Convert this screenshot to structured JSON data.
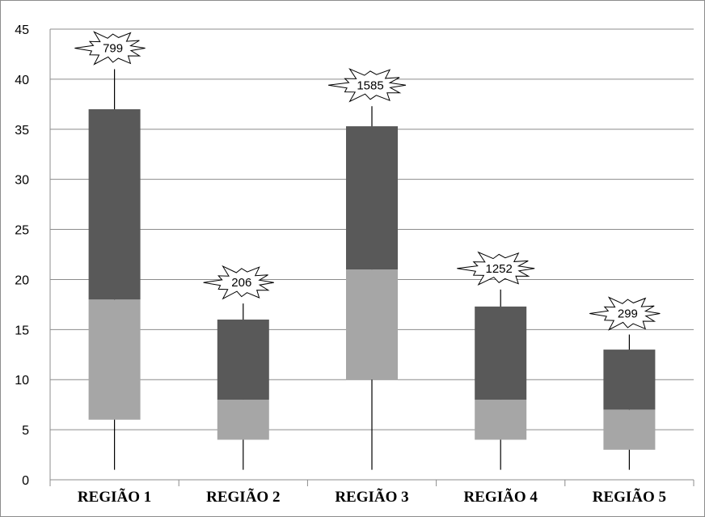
{
  "chart_data": {
    "type": "boxplot",
    "title": "",
    "xlabel": "",
    "ylabel": "",
    "ylim": [
      0,
      45
    ],
    "yticks": [
      0,
      5,
      10,
      15,
      20,
      25,
      30,
      35,
      40,
      45
    ],
    "grid": true,
    "categories": [
      "REGIÃO 1",
      "REGIÃO 2",
      "REGIÃO 3",
      "REGIÃO 4",
      "REGIÃO 5"
    ],
    "boxes": [
      {
        "category": "REGIÃO 1",
        "whisker_low": 1,
        "q1": 6,
        "median": 18,
        "q3": 37,
        "whisker_high": 41,
        "outlier_label": "799"
      },
      {
        "category": "REGIÃO 2",
        "whisker_low": 1,
        "q1": 4,
        "median": 8,
        "q3": 16,
        "whisker_high": 17.6,
        "outlier_label": "206"
      },
      {
        "category": "REGIÃO 3",
        "whisker_low": 1,
        "q1": 10,
        "median": 21,
        "q3": 35.3,
        "whisker_high": 37.3,
        "outlier_label": "1585"
      },
      {
        "category": "REGIÃO 4",
        "whisker_low": 1,
        "q1": 4,
        "median": 8,
        "q3": 17.3,
        "whisker_high": 19,
        "outlier_label": "1252"
      },
      {
        "category": "REGIÃO 5",
        "whisker_low": 1,
        "q1": 3,
        "median": 7,
        "q3": 13,
        "whisker_high": 14.5,
        "outlier_label": "299"
      }
    ],
    "colors": {
      "lower_box": "#a6a6a6",
      "upper_box": "#595959",
      "grid": "#8c8c8c",
      "whisker": "#000000"
    }
  }
}
